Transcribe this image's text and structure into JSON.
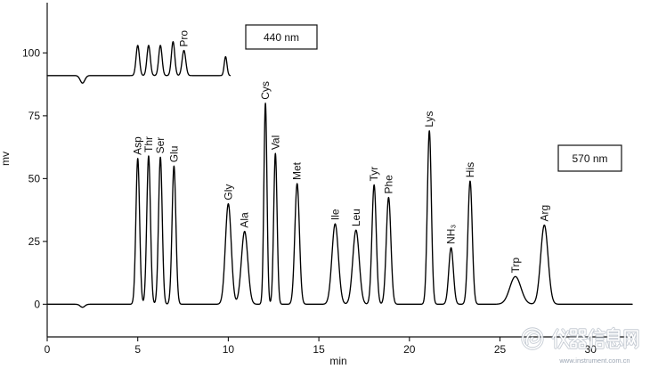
{
  "chart_data": {
    "type": "line",
    "xlabel": "min",
    "ylabel": "mv",
    "xlim": [
      0,
      32.3
    ],
    "ylim": [
      -13,
      120
    ],
    "x_ticks": [
      0,
      5,
      10,
      15,
      20,
      25,
      30
    ],
    "y_ticks": [
      0,
      25,
      50,
      75,
      100
    ],
    "grid": false,
    "line_color": "#000000",
    "series": [
      {
        "name": "440 nm",
        "baseline": 91,
        "x_range": [
          0,
          10.1
        ],
        "peaks": [
          {
            "label": "",
            "x": 1.95,
            "y": 88,
            "fwhm": 0.3
          },
          {
            "label": "",
            "x": 5.0,
            "y": 103,
            "fwhm": 0.22
          },
          {
            "label": "",
            "x": 5.6,
            "y": 103,
            "fwhm": 0.22
          },
          {
            "label": "",
            "x": 6.25,
            "y": 103,
            "fwhm": 0.22
          },
          {
            "label": "",
            "x": 6.95,
            "y": 104.5,
            "fwhm": 0.22
          },
          {
            "label": "Pro",
            "x": 7.55,
            "y": 101,
            "fwhm": 0.24
          },
          {
            "label": "",
            "x": 9.85,
            "y": 98.5,
            "fwhm": 0.18
          }
        ]
      },
      {
        "name": "570 nm",
        "baseline": 0,
        "x_range": [
          0,
          32.3
        ],
        "peaks": [
          {
            "label": "",
            "x": 1.95,
            "y": -1.2,
            "fwhm": 0.3
          },
          {
            "label": "Asp",
            "x": 5.0,
            "y": 58,
            "fwhm": 0.24
          },
          {
            "label": "Thr",
            "x": 5.6,
            "y": 59,
            "fwhm": 0.24
          },
          {
            "label": "Ser",
            "x": 6.25,
            "y": 58.5,
            "fwhm": 0.24
          },
          {
            "label": "Glu",
            "x": 7.0,
            "y": 55,
            "fwhm": 0.25
          },
          {
            "label": "Gly",
            "x": 10.0,
            "y": 40,
            "fwhm": 0.38
          },
          {
            "label": "Ala",
            "x": 10.9,
            "y": 29,
            "fwhm": 0.42
          },
          {
            "label": "Cys",
            "x": 12.05,
            "y": 80,
            "fwhm": 0.2
          },
          {
            "label": "Val",
            "x": 12.6,
            "y": 60,
            "fwhm": 0.22
          },
          {
            "label": "Met",
            "x": 13.8,
            "y": 48,
            "fwhm": 0.3
          },
          {
            "label": "Ile",
            "x": 15.9,
            "y": 32,
            "fwhm": 0.42
          },
          {
            "label": "Leu",
            "x": 17.05,
            "y": 29.5,
            "fwhm": 0.42
          },
          {
            "label": "Tyr",
            "x": 18.05,
            "y": 47.5,
            "fwhm": 0.28
          },
          {
            "label": "Phe",
            "x": 18.85,
            "y": 42.5,
            "fwhm": 0.3
          },
          {
            "label": "Lys",
            "x": 21.1,
            "y": 69,
            "fwhm": 0.26
          },
          {
            "label": "NH₃",
            "x": 22.3,
            "y": 22.5,
            "fwhm": 0.3
          },
          {
            "label": "His",
            "x": 23.35,
            "y": 49,
            "fwhm": 0.28
          },
          {
            "label": "Trp",
            "x": 25.85,
            "y": 11,
            "fwhm": 0.72
          },
          {
            "label": "Arg",
            "x": 27.45,
            "y": 31.5,
            "fwhm": 0.48
          }
        ]
      }
    ]
  },
  "watermark": {
    "text": "仪器信息网",
    "url": "www.instrument.com.cn"
  }
}
